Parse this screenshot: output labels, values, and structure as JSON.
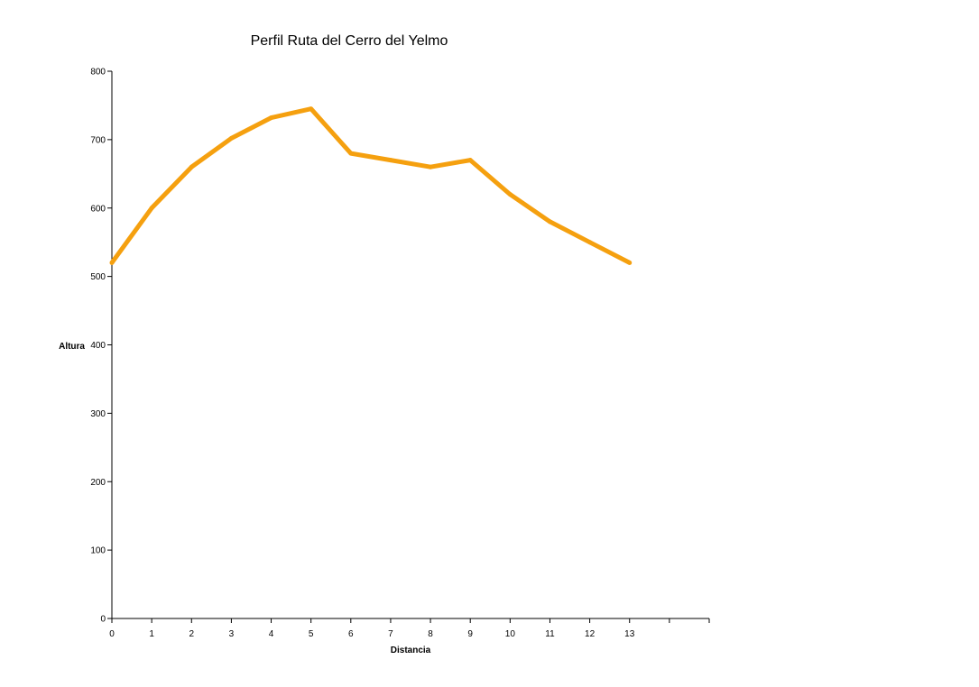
{
  "chart_data": {
    "type": "line",
    "title": "Perfil Ruta del Cerro del Yelmo",
    "xlabel": "Distancia",
    "ylabel": "Altura",
    "categories": [
      "0",
      "1",
      "2",
      "3",
      "4",
      "5",
      "6",
      "7",
      "8",
      "9",
      "10",
      "11",
      "12",
      "13",
      ""
    ],
    "x": [
      0,
      1,
      2,
      3,
      4,
      5,
      6,
      7,
      8,
      9,
      10,
      11,
      12,
      13
    ],
    "y": [
      520,
      600,
      660,
      702,
      732,
      745,
      680,
      670,
      660,
      670,
      620,
      580,
      550,
      520
    ],
    "ylim": [
      0,
      800
    ],
    "yticks": [
      0,
      100,
      200,
      300,
      400,
      500,
      600,
      700,
      800
    ],
    "grid": false,
    "legend": "none",
    "line_color": "#F5A00F"
  }
}
